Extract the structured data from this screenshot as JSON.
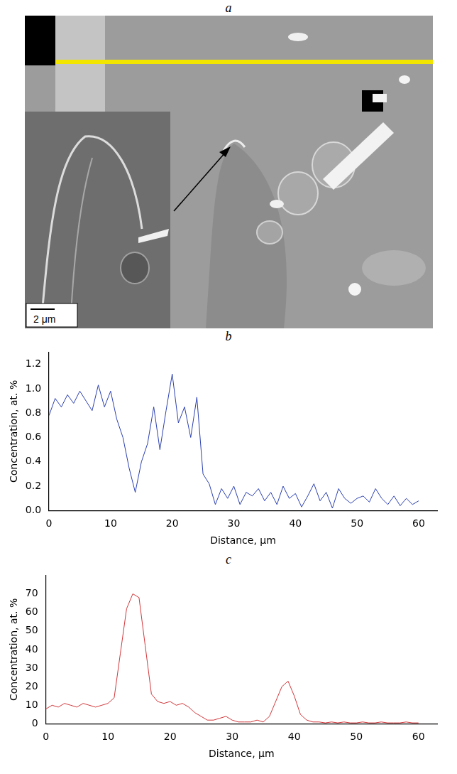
{
  "panel_labels": [
    "a",
    "b",
    "c"
  ],
  "micrograph": {
    "scale_bar": "2 μm"
  },
  "chart_data": [
    {
      "type": "line",
      "x_label": "Distance, μm",
      "y_label": "Concentration, at. %",
      "xlim": [
        0,
        63
      ],
      "xticks": [
        0,
        10,
        20,
        30,
        40,
        50,
        60
      ],
      "ylim": [
        0,
        1.3
      ],
      "yticks": [
        {
          "value": 0,
          "label": "0.0"
        },
        0.2,
        0.4,
        0.6,
        0.8,
        {
          "value": 1,
          "label": "1.0"
        },
        1.2
      ],
      "grid": false,
      "x": [
        0,
        1,
        2,
        3,
        4,
        5,
        6,
        7,
        8,
        9,
        10,
        11,
        12,
        13,
        14,
        15,
        16,
        17,
        18,
        19,
        20,
        21,
        22,
        23,
        24,
        25,
        26,
        27,
        28,
        29,
        30,
        31,
        32,
        33,
        34,
        35,
        36,
        37,
        38,
        39,
        40,
        41,
        42,
        43,
        44,
        45,
        46,
        47,
        48,
        49,
        50,
        51,
        52,
        53,
        54,
        55,
        56,
        57,
        58,
        59,
        60
      ],
      "values": [
        0.78,
        0.92,
        0.85,
        0.95,
        0.88,
        0.98,
        0.9,
        0.82,
        1.03,
        0.85,
        0.98,
        0.75,
        0.6,
        0.35,
        0.15,
        0.4,
        0.55,
        0.85,
        0.5,
        0.82,
        1.12,
        0.72,
        0.85,
        0.6,
        0.93,
        0.3,
        0.22,
        0.05,
        0.18,
        0.1,
        0.2,
        0.05,
        0.15,
        0.12,
        0.18,
        0.08,
        0.15,
        0.05,
        0.2,
        0.1,
        0.14,
        0.03,
        0.12,
        0.22,
        0.08,
        0.15,
        0.02,
        0.18,
        0.1,
        0.06,
        0.1,
        0.12,
        0.07,
        0.18,
        0.1,
        0.05,
        0.12,
        0.04,
        0.1,
        0.05,
        0.08
      ],
      "color": "#2a3fb0"
    },
    {
      "type": "line",
      "x_label": "Distance, μm",
      "y_label": "Concentration, at. %",
      "xlim": [
        0,
        63
      ],
      "xticks": [
        0,
        10,
        20,
        30,
        40,
        50,
        60
      ],
      "ylim": [
        0,
        80
      ],
      "yticks": [
        0,
        10,
        20,
        30,
        40,
        50,
        60,
        70
      ],
      "grid": false,
      "x": [
        0,
        1,
        2,
        3,
        4,
        5,
        6,
        7,
        8,
        9,
        10,
        11,
        12,
        13,
        14,
        15,
        16,
        17,
        18,
        19,
        20,
        21,
        22,
        23,
        24,
        25,
        26,
        27,
        28,
        29,
        30,
        31,
        32,
        33,
        34,
        35,
        36,
        37,
        38,
        39,
        40,
        41,
        42,
        43,
        44,
        45,
        46,
        47,
        48,
        49,
        50,
        51,
        52,
        53,
        54,
        55,
        56,
        57,
        58,
        59,
        60
      ],
      "values": [
        8,
        10,
        9,
        11,
        10,
        9,
        11,
        10,
        9,
        10,
        11,
        14,
        38,
        62,
        70,
        68,
        42,
        16,
        12,
        11,
        12,
        10,
        11,
        9,
        6,
        4,
        2,
        2,
        3,
        4,
        2,
        1,
        1,
        1,
        2,
        1,
        4,
        12,
        20,
        23,
        15,
        5,
        2,
        1,
        1,
        0.5,
        1,
        0.5,
        1,
        0.5,
        0.5,
        1,
        0.5,
        0.5,
        1,
        0.5,
        0.5,
        0.5,
        1,
        0.5,
        0.5
      ],
      "color": "#d1363a"
    }
  ]
}
